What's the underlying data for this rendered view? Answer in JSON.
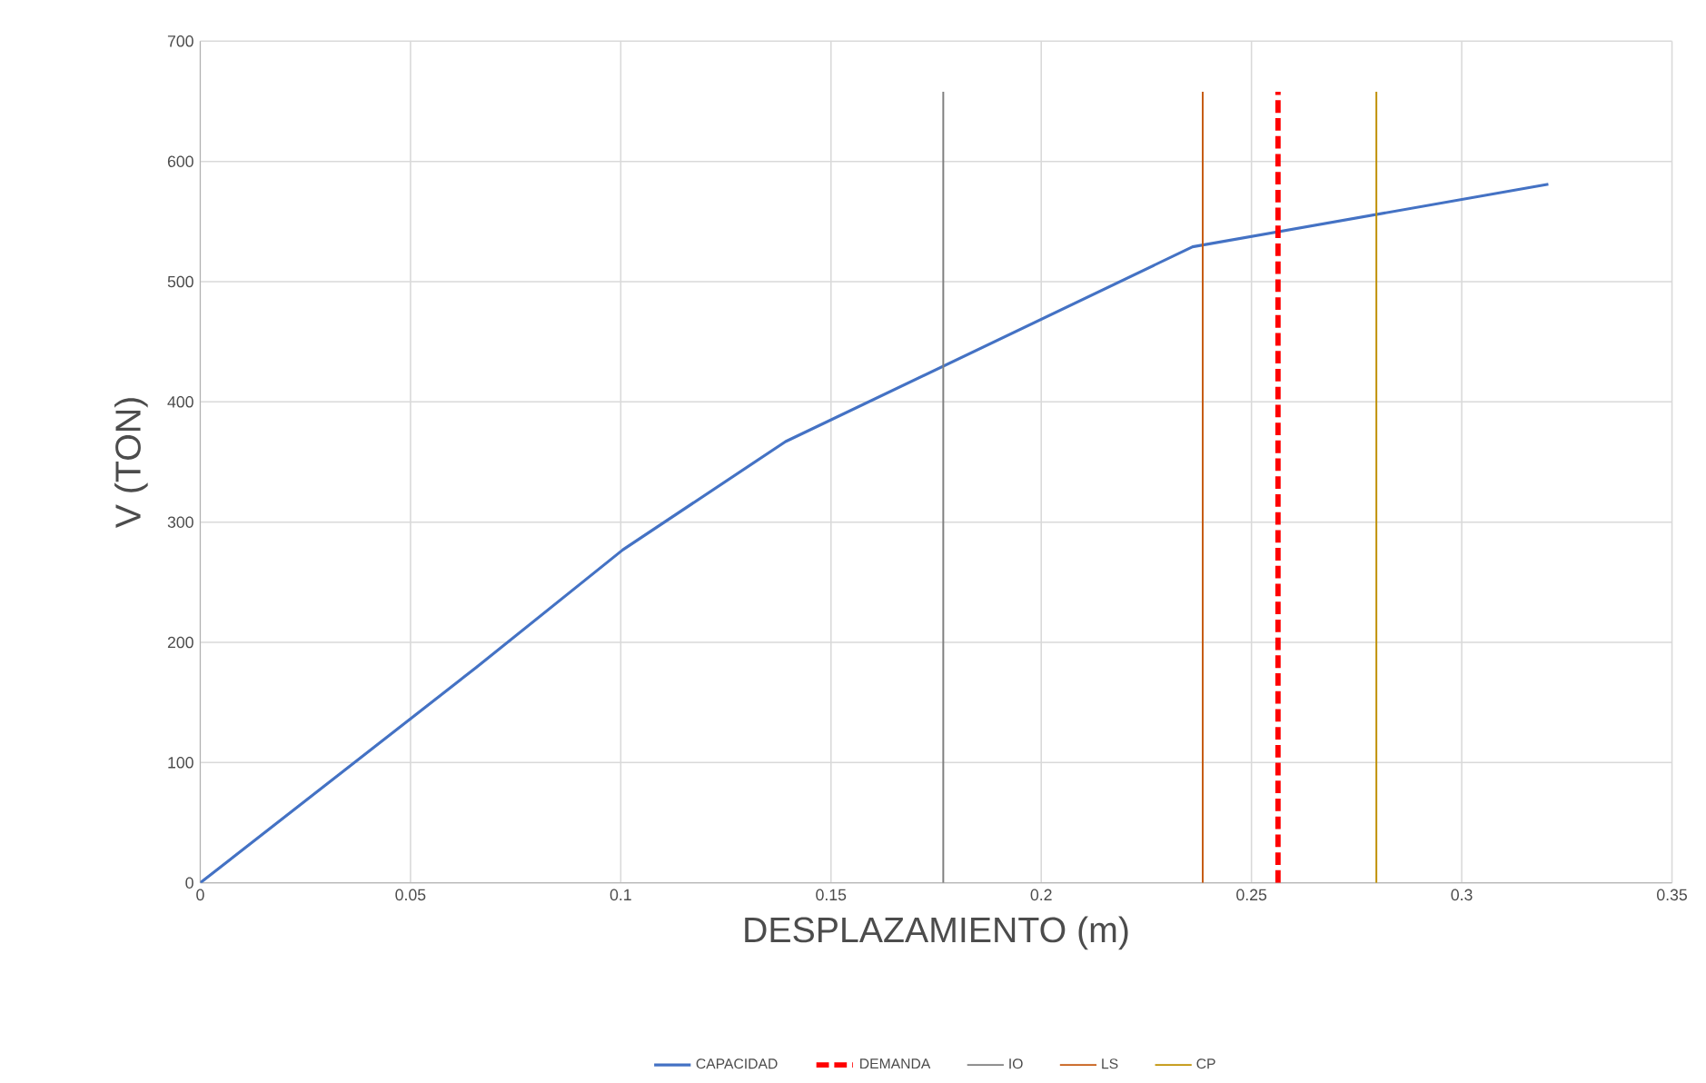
{
  "chart_data": {
    "type": "line",
    "xlabel": "DESPLAZAMIENTO (m)",
    "ylabel": "V (TON)",
    "xlim": [
      0,
      0.35
    ],
    "ylim": [
      0,
      700
    ],
    "xticks": [
      0,
      0.05,
      0.1,
      0.15,
      0.2,
      0.25,
      0.3,
      0.35
    ],
    "yticks": [
      0,
      100,
      200,
      300,
      400,
      500,
      600,
      700
    ],
    "grid": true,
    "legend": "bottom",
    "marker": "none",
    "series": [
      {
        "name": "CAPACIDAD",
        "color": "#4472c4",
        "line_style": "solid",
        "x": [
          0,
          0.0656,
          0.1005,
          0.1392,
          0.236,
          0.3206
        ],
        "values": [
          0,
          179,
          277,
          367,
          529,
          581
        ]
      },
      {
        "name": "DEMANDA",
        "color": "#ff0000",
        "line_style": "dashed",
        "x": [
          0.2563,
          0.2563
        ],
        "values": [
          0,
          658
        ]
      },
      {
        "name": "IO",
        "color": "#7f7f7f",
        "line_style": "solid",
        "x": [
          0.1767,
          0.1767
        ],
        "values": [
          0,
          658
        ]
      },
      {
        "name": "LS",
        "color": "#c55a11",
        "line_style": "solid",
        "x": [
          0.2384,
          0.2384
        ],
        "values": [
          0,
          658
        ]
      },
      {
        "name": "CP",
        "color": "#bf9000",
        "line_style": "solid",
        "x": [
          0.2797,
          0.2797
        ],
        "values": [
          0,
          658
        ]
      }
    ]
  }
}
